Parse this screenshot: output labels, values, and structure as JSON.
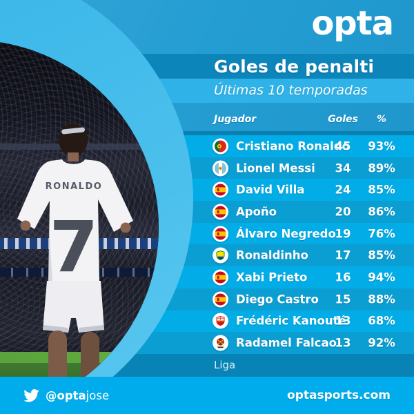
{
  "brand": {
    "logo_text": "opta",
    "website": "optasports.com",
    "twitter": {
      "at_bold": "@opta",
      "rest": "jose"
    }
  },
  "chart_data": {
    "type": "table",
    "title": "Goles de penalti",
    "subtitle": "Últimas 10 temporadas",
    "columns": {
      "player": "Jugador",
      "goals": "Goles",
      "pct": "%"
    },
    "rows": [
      {
        "player": "Cristiano Ronaldo",
        "goals": 45,
        "pct": "93%",
        "badge": "portugal-flag"
      },
      {
        "player": "Lionel Messi",
        "goals": 34,
        "pct": "89%",
        "badge": "argentina-crest"
      },
      {
        "player": "David Villa",
        "goals": 24,
        "pct": "85%",
        "badge": "spain-flag"
      },
      {
        "player": "Apoño",
        "goals": 20,
        "pct": "86%",
        "badge": "spain-flag"
      },
      {
        "player": "Álvaro Negredo",
        "goals": 19,
        "pct": "76%",
        "badge": "spain-flag"
      },
      {
        "player": "Ronaldinho",
        "goals": 17,
        "pct": "85%",
        "badge": "brazil-crest"
      },
      {
        "player": "Xabi Prieto",
        "goals": 16,
        "pct": "94%",
        "badge": "spain-flag"
      },
      {
        "player": "Diego Castro",
        "goals": 15,
        "pct": "88%",
        "badge": "spain-flag"
      },
      {
        "player": "Frédéric Kanouté",
        "goals": 13,
        "pct": "68%",
        "badge": "sevilla-crest"
      },
      {
        "player": "Radamel Falcao",
        "goals": 13,
        "pct": "92%",
        "badge": "colombia-crest"
      }
    ],
    "footer_label": "Liga"
  },
  "photo": {
    "jersey_name": "RONALDO",
    "jersey_number": "7"
  },
  "colors": {
    "background": "#1D9AD1",
    "title_band": "#0C85BB",
    "subtitle_band": "#2EB2E7",
    "row_light": "#02ADE7",
    "row_dark": "#0B9ED2",
    "separator": "#0A7FB2",
    "liga_band": "#0883B6",
    "footer_band": "#00ACEC",
    "ring": "#3DB8E9",
    "text": "#FFFFFF"
  }
}
